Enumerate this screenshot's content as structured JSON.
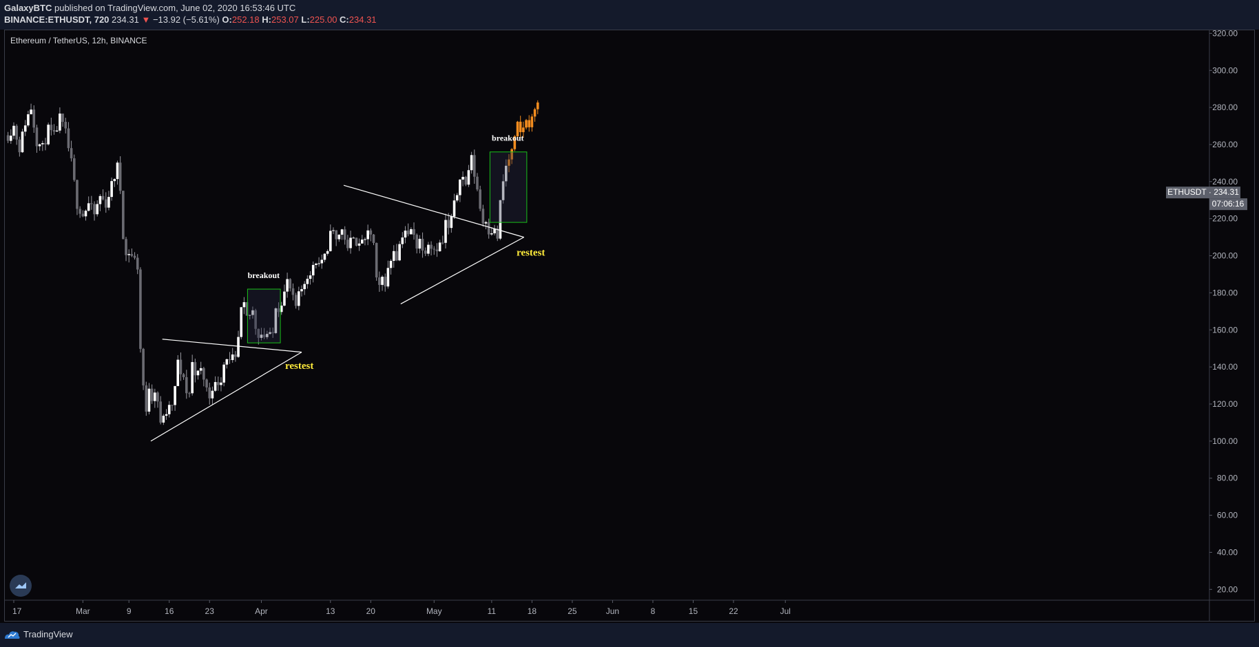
{
  "header": {
    "author": "GalaxyBTC",
    "published_text": " published on TradingView.com, June 02, 2020 16:53:46 UTC",
    "symbol": "BINANCE:ETHUSDT, 720",
    "last": "234.31",
    "change_arrow": "▼",
    "change": "−13.92 (−5.61%)",
    "o_label": "O:",
    "o_value": "252.18",
    "h_label": "H:",
    "h_value": "253.07",
    "l_label": "L:",
    "l_value": "225.00",
    "c_label": "C:",
    "c_value": "234.31"
  },
  "footer": {
    "brand": "TradingView",
    "logo_icon": "tradingview-logo-icon",
    "badge_icon": "tradingview-cloud-icon"
  },
  "colors": {
    "background": "#08070b",
    "panel": "#141a2b",
    "candle_up": "#ffffff",
    "candle_down": "#6b6b72",
    "projection": "#f28c1f",
    "annotation_text": "#ffeb3b",
    "breakout_box": "#19c219",
    "trendline": "#ffffff"
  },
  "chart_data": {
    "type": "candlestick",
    "title": "Ethereum / TetherUS, 12h, BINANCE",
    "symbol": "ETHUSDT",
    "interval": "12h",
    "ylim": [
      10,
      324
    ],
    "y_ticks": [
      "320.00",
      "300.00",
      "280.00",
      "260.00",
      "240.00",
      "220.00",
      "200.00",
      "180.00",
      "160.00",
      "140.00",
      "120.00",
      "100.00",
      "80.00",
      "60.00",
      "40.00",
      "20.00"
    ],
    "y_tick_values": [
      320,
      300,
      280,
      260,
      240,
      220,
      200,
      180,
      160,
      140,
      120,
      100,
      80,
      60,
      40,
      20
    ],
    "x_ticks": [
      {
        "label": "17",
        "day": -1
      },
      {
        "label": "Mar",
        "day": 11
      },
      {
        "label": "9",
        "day": 19
      },
      {
        "label": "16",
        "day": 26
      },
      {
        "label": "23",
        "day": 33
      },
      {
        "label": "Apr",
        "day": 42
      },
      {
        "label": "13",
        "day": 54
      },
      {
        "label": "20",
        "day": 61
      },
      {
        "label": "May",
        "day": 72
      },
      {
        "label": "11",
        "day": 82
      },
      {
        "label": "18",
        "day": 89
      },
      {
        "label": "25",
        "day": 96
      },
      {
        "label": "Jun",
        "day": 103
      },
      {
        "label": "8",
        "day": 110
      },
      {
        "label": "15",
        "day": 117
      },
      {
        "label": "22",
        "day": 124
      },
      {
        "label": "Jul",
        "day": 133
      }
    ],
    "price_label": "ETHUSDT",
    "price_value": "234.31",
    "countdown": "07:06:16",
    "price_series": [
      {
        "day": -2.0,
        "p": 265
      },
      {
        "day": -1.0,
        "p": 270
      },
      {
        "day": 0.0,
        "p": 258
      },
      {
        "day": 1.0,
        "p": 272
      },
      {
        "day": 2.0,
        "p": 280
      },
      {
        "day": 3.0,
        "p": 262
      },
      {
        "day": 4.0,
        "p": 258
      },
      {
        "day": 5.0,
        "p": 268
      },
      {
        "day": 6.0,
        "p": 264
      },
      {
        "day": 7.0,
        "p": 274
      },
      {
        "day": 8.0,
        "p": 266
      },
      {
        "day": 9.0,
        "p": 250
      },
      {
        "day": 10.0,
        "p": 228
      },
      {
        "day": 11.0,
        "p": 222
      },
      {
        "day": 12.0,
        "p": 228
      },
      {
        "day": 13.0,
        "p": 222
      },
      {
        "day": 14.0,
        "p": 232
      },
      {
        "day": 15.0,
        "p": 228
      },
      {
        "day": 16.0,
        "p": 238
      },
      {
        "day": 17.0,
        "p": 248
      },
      {
        "day": 17.5,
        "p": 236
      },
      {
        "day": 18.0,
        "p": 212
      },
      {
        "day": 18.5,
        "p": 200
      },
      {
        "day": 19.0,
        "p": 202
      },
      {
        "day": 19.5,
        "p": 200
      },
      {
        "day": 20.0,
        "p": 198
      },
      {
        "day": 20.5,
        "p": 194
      },
      {
        "day": 21.0,
        "p": 150
      },
      {
        "day": 21.5,
        "p": 130
      },
      {
        "day": 22.0,
        "p": 114
      },
      {
        "day": 22.5,
        "p": 130
      },
      {
        "day": 23.0,
        "p": 124
      },
      {
        "day": 23.5,
        "p": 128
      },
      {
        "day": 24.0,
        "p": 122
      },
      {
        "day": 24.5,
        "p": 108
      },
      {
        "day": 25.0,
        "p": 115
      },
      {
        "day": 25.5,
        "p": 112
      },
      {
        "day": 26.0,
        "p": 120
      },
      {
        "day": 26.5,
        "p": 118
      },
      {
        "day": 27.0,
        "p": 128
      },
      {
        "day": 27.5,
        "p": 144
      },
      {
        "day": 28.0,
        "p": 134
      },
      {
        "day": 28.5,
        "p": 136
      },
      {
        "day": 29.0,
        "p": 126
      },
      {
        "day": 29.5,
        "p": 126
      },
      {
        "day": 30.0,
        "p": 142
      },
      {
        "day": 30.5,
        "p": 138
      },
      {
        "day": 31.0,
        "p": 136
      },
      {
        "day": 31.5,
        "p": 138
      },
      {
        "day": 32.0,
        "p": 134
      },
      {
        "day": 32.5,
        "p": 128
      },
      {
        "day": 33.0,
        "p": 124
      },
      {
        "day": 33.5,
        "p": 130
      },
      {
        "day": 34.0,
        "p": 130
      },
      {
        "day": 34.5,
        "p": 132
      },
      {
        "day": 35.0,
        "p": 134
      },
      {
        "day": 35.5,
        "p": 142
      },
      {
        "day": 36.0,
        "p": 146
      },
      {
        "day": 36.5,
        "p": 142
      },
      {
        "day": 37.0,
        "p": 144
      },
      {
        "day": 37.5,
        "p": 143
      },
      {
        "day": 38.0,
        "p": 155
      },
      {
        "day": 38.5,
        "p": 170
      },
      {
        "day": 39.0,
        "p": 172
      },
      {
        "day": 39.5,
        "p": 166
      },
      {
        "day": 40.0,
        "p": 168
      },
      {
        "day": 40.5,
        "p": 170
      },
      {
        "day": 41.0,
        "p": 162
      },
      {
        "day": 41.5,
        "p": 158
      },
      {
        "day": 42.0,
        "p": 158
      },
      {
        "day": 42.5,
        "p": 157
      },
      {
        "day": 43.0,
        "p": 158
      },
      {
        "day": 43.5,
        "p": 156
      },
      {
        "day": 44.0,
        "p": 158
      },
      {
        "day": 44.5,
        "p": 174
      },
      {
        "day": 45.0,
        "p": 172
      },
      {
        "day": 45.5,
        "p": 176
      },
      {
        "day": 46.0,
        "p": 180
      },
      {
        "day": 46.5,
        "p": 186
      },
      {
        "day": 47.0,
        "p": 182
      },
      {
        "day": 47.5,
        "p": 176
      },
      {
        "day": 48.0,
        "p": 172
      },
      {
        "day": 48.5,
        "p": 178
      },
      {
        "day": 49.0,
        "p": 182
      },
      {
        "day": 49.5,
        "p": 186
      },
      {
        "day": 50.0,
        "p": 190
      },
      {
        "day": 50.5,
        "p": 188
      },
      {
        "day": 51.0,
        "p": 196
      },
      {
        "day": 51.5,
        "p": 198
      },
      {
        "day": 52.0,
        "p": 196
      },
      {
        "day": 52.5,
        "p": 198
      },
      {
        "day": 53.0,
        "p": 199
      },
      {
        "day": 53.5,
        "p": 200
      },
      {
        "day": 54.0,
        "p": 216
      },
      {
        "day": 54.5,
        "p": 212
      },
      {
        "day": 55.0,
        "p": 208
      },
      {
        "day": 55.5,
        "p": 212
      },
      {
        "day": 56.0,
        "p": 214
      },
      {
        "day": 56.5,
        "p": 210
      },
      {
        "day": 57.0,
        "p": 202
      },
      {
        "day": 57.5,
        "p": 208
      },
      {
        "day": 58.0,
        "p": 212
      },
      {
        "day": 58.5,
        "p": 208
      },
      {
        "day": 59.0,
        "p": 204
      },
      {
        "day": 59.5,
        "p": 210
      },
      {
        "day": 60.0,
        "p": 206
      },
      {
        "day": 60.5,
        "p": 212
      },
      {
        "day": 61.0,
        "p": 212
      },
      {
        "day": 61.5,
        "p": 206
      },
      {
        "day": 62.0,
        "p": 186
      },
      {
        "day": 62.5,
        "p": 182
      },
      {
        "day": 63.0,
        "p": 188
      },
      {
        "day": 63.5,
        "p": 186
      },
      {
        "day": 64.0,
        "p": 192
      },
      {
        "day": 64.5,
        "p": 198
      },
      {
        "day": 65.0,
        "p": 204
      },
      {
        "day": 65.5,
        "p": 200
      },
      {
        "day": 66.0,
        "p": 206
      },
      {
        "day": 66.5,
        "p": 212
      },
      {
        "day": 67.0,
        "p": 214
      },
      {
        "day": 67.5,
        "p": 210
      },
      {
        "day": 68.0,
        "p": 214
      },
      {
        "day": 68.5,
        "p": 210
      },
      {
        "day": 69.0,
        "p": 206
      },
      {
        "day": 69.5,
        "p": 210
      },
      {
        "day": 70.0,
        "p": 202
      },
      {
        "day": 70.5,
        "p": 204
      },
      {
        "day": 71.0,
        "p": 208
      },
      {
        "day": 71.5,
        "p": 206
      },
      {
        "day": 72.0,
        "p": 204
      },
      {
        "day": 72.5,
        "p": 205
      },
      {
        "day": 73.0,
        "p": 206
      },
      {
        "day": 73.5,
        "p": 207
      },
      {
        "day": 74.0,
        "p": 218
      },
      {
        "day": 74.5,
        "p": 214
      },
      {
        "day": 75.0,
        "p": 220
      },
      {
        "day": 75.5,
        "p": 227
      },
      {
        "day": 76.0,
        "p": 234
      },
      {
        "day": 76.5,
        "p": 244
      },
      {
        "day": 77.0,
        "p": 242
      },
      {
        "day": 77.5,
        "p": 238
      },
      {
        "day": 78.0,
        "p": 247
      },
      {
        "day": 78.5,
        "p": 252
      },
      {
        "day": 79.0,
        "p": 244
      },
      {
        "day": 79.5,
        "p": 236
      },
      {
        "day": 80.0,
        "p": 226
      },
      {
        "day": 80.5,
        "p": 218
      },
      {
        "day": 81.0,
        "p": 220
      },
      {
        "day": 81.5,
        "p": 214
      },
      {
        "day": 82.0,
        "p": 214
      },
      {
        "day": 82.5,
        "p": 213
      },
      {
        "day": 83.0,
        "p": 210
      },
      {
        "day": 83.5,
        "p": 228
      },
      {
        "day": 84.0,
        "p": 240
      },
      {
        "day": 84.5,
        "p": 248
      },
      {
        "day": 85.0,
        "p": 252
      },
      {
        "day": 85.5,
        "p": 256
      },
      {
        "day": 86.0,
        "p": 262
      },
      {
        "day": 86.5,
        "p": 270
      },
      {
        "day": 87.0,
        "p": 266
      },
      {
        "day": 87.5,
        "p": 270
      },
      {
        "day": 88.0,
        "p": 272
      },
      {
        "day": 88.5,
        "p": 272
      },
      {
        "day": 89.0,
        "p": 273
      },
      {
        "day": 89.5,
        "p": 280
      },
      {
        "day": 90.0,
        "p": 284
      }
    ],
    "trendlines": [
      {
        "from": {
          "day": 22.8,
          "p": 100
        },
        "to": {
          "day": 49.0,
          "p": 148
        }
      },
      {
        "from": {
          "day": 24.8,
          "p": 155
        },
        "to": {
          "day": 49.0,
          "p": 148
        }
      },
      {
        "from": {
          "day": 56.3,
          "p": 238
        },
        "to": {
          "day": 87.6,
          "p": 210
        }
      },
      {
        "from": {
          "day": 66.2,
          "p": 174
        },
        "to": {
          "day": 87.6,
          "p": 210
        }
      }
    ],
    "boxes": [
      {
        "x0": 39.6,
        "x1": 45.3,
        "p0": 182,
        "p1": 153
      },
      {
        "x0": 81.7,
        "x1": 88.1,
        "p0": 256,
        "p1": 218
      }
    ],
    "annotations": [
      {
        "text": "breakout",
        "day": 42.4,
        "p": 188,
        "color": "#ffffff"
      },
      {
        "text": "restest",
        "day": 48.6,
        "p": 139,
        "color": "#ffeb3b"
      },
      {
        "text": "breakout",
        "day": 84.8,
        "p": 262,
        "color": "#ffffff"
      },
      {
        "text": "restest",
        "day": 88.8,
        "p": 200,
        "color": "#ffeb3b"
      }
    ]
  }
}
